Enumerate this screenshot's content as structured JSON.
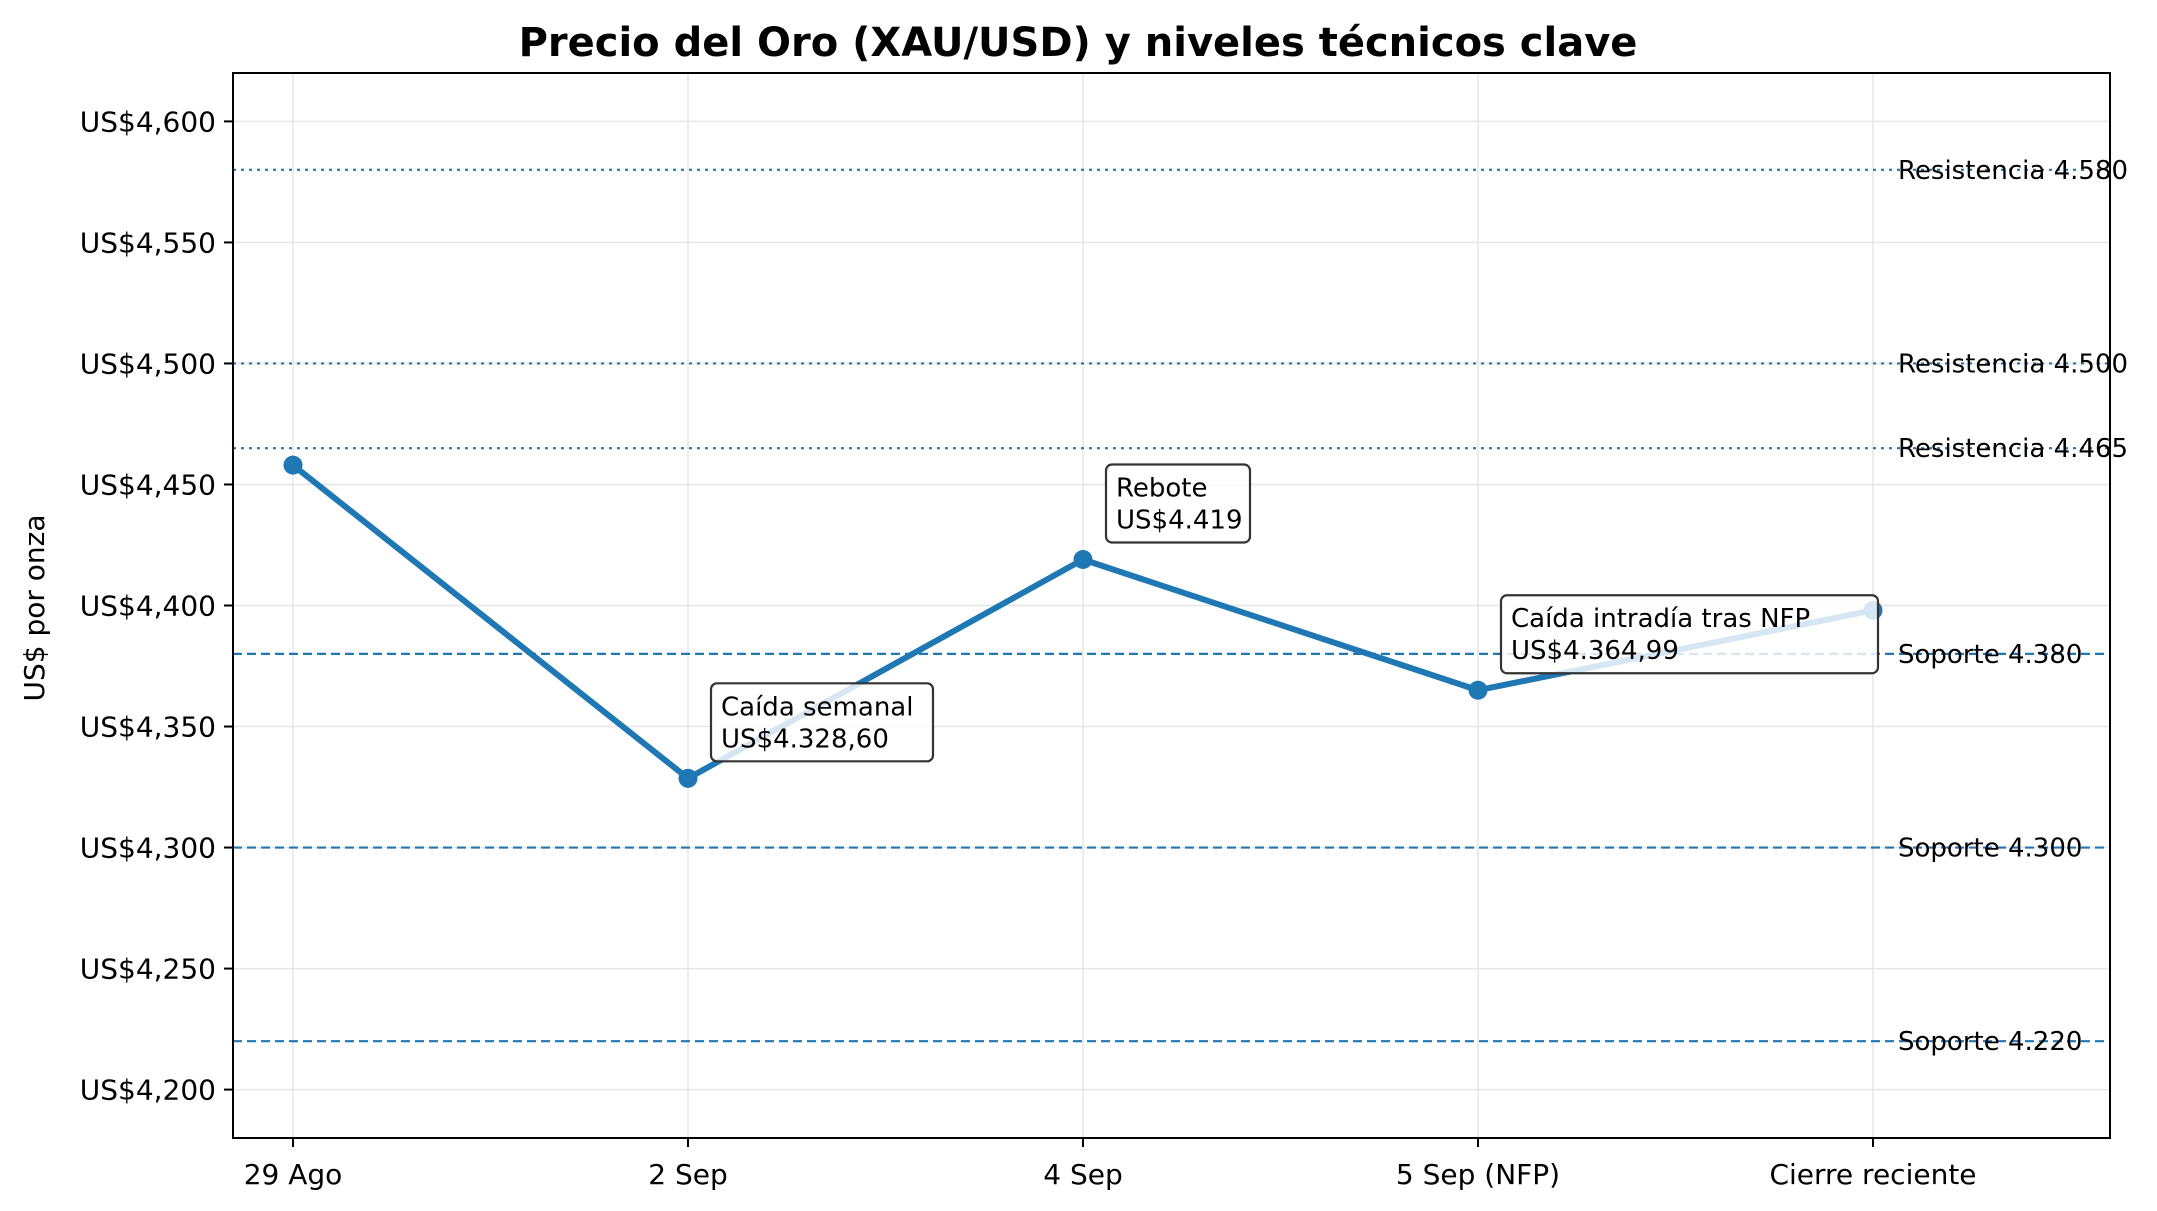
{
  "chart_data": {
    "type": "line",
    "title": "Precio del Oro (XAU/USD) y niveles técnicos clave",
    "xlabel": "",
    "ylabel": "US$ por onza",
    "categories": [
      "29 Ago",
      "2 Sep",
      "4 Sep",
      "5 Sep (NFP)",
      "Cierre reciente"
    ],
    "series": [
      {
        "values": [
          4458,
          4328.6,
          4419,
          4364.99,
          4398
        ]
      }
    ],
    "ylim": [
      4180,
      4620
    ],
    "yticks": [
      4200,
      4250,
      4300,
      4350,
      4400,
      4450,
      4500,
      4550,
      4600
    ],
    "ytick_labels": [
      "US$4,200",
      "US$4,250",
      "US$4,300",
      "US$4,350",
      "US$4,400",
      "US$4,450",
      "US$4,500",
      "US$4,550",
      "US$4,600"
    ],
    "grid": true,
    "levels": [
      {
        "label": "Resistencia 4.580",
        "value": 4580,
        "kind": "resistance",
        "style": "dotted"
      },
      {
        "label": "Resistencia 4.500",
        "value": 4500,
        "kind": "resistance",
        "style": "dotted"
      },
      {
        "label": "Resistencia 4.465",
        "value": 4465,
        "kind": "resistance",
        "style": "dotted"
      },
      {
        "label": "Soporte 4.380",
        "value": 4380,
        "kind": "support",
        "style": "dashed"
      },
      {
        "label": "Soporte 4.300",
        "value": 4300,
        "kind": "support",
        "style": "dashed"
      },
      {
        "label": "Soporte 4.220",
        "value": 4220,
        "kind": "support",
        "style": "dashed"
      }
    ],
    "annotations": [
      {
        "point_index": 1,
        "lines": [
          "Caída semanal",
          "US$4.328,60"
        ]
      },
      {
        "point_index": 2,
        "lines": [
          "Rebote",
          "US$4.419"
        ]
      },
      {
        "point_index": 3,
        "lines": [
          "Caída intradía tras NFP",
          "US$4.364,99"
        ]
      }
    ],
    "colors": {
      "line": "#1f77b4",
      "resistance": "#1f77b4",
      "support": "#1f77b4",
      "grid": "#e6e6e6",
      "axis": "#000000"
    }
  }
}
